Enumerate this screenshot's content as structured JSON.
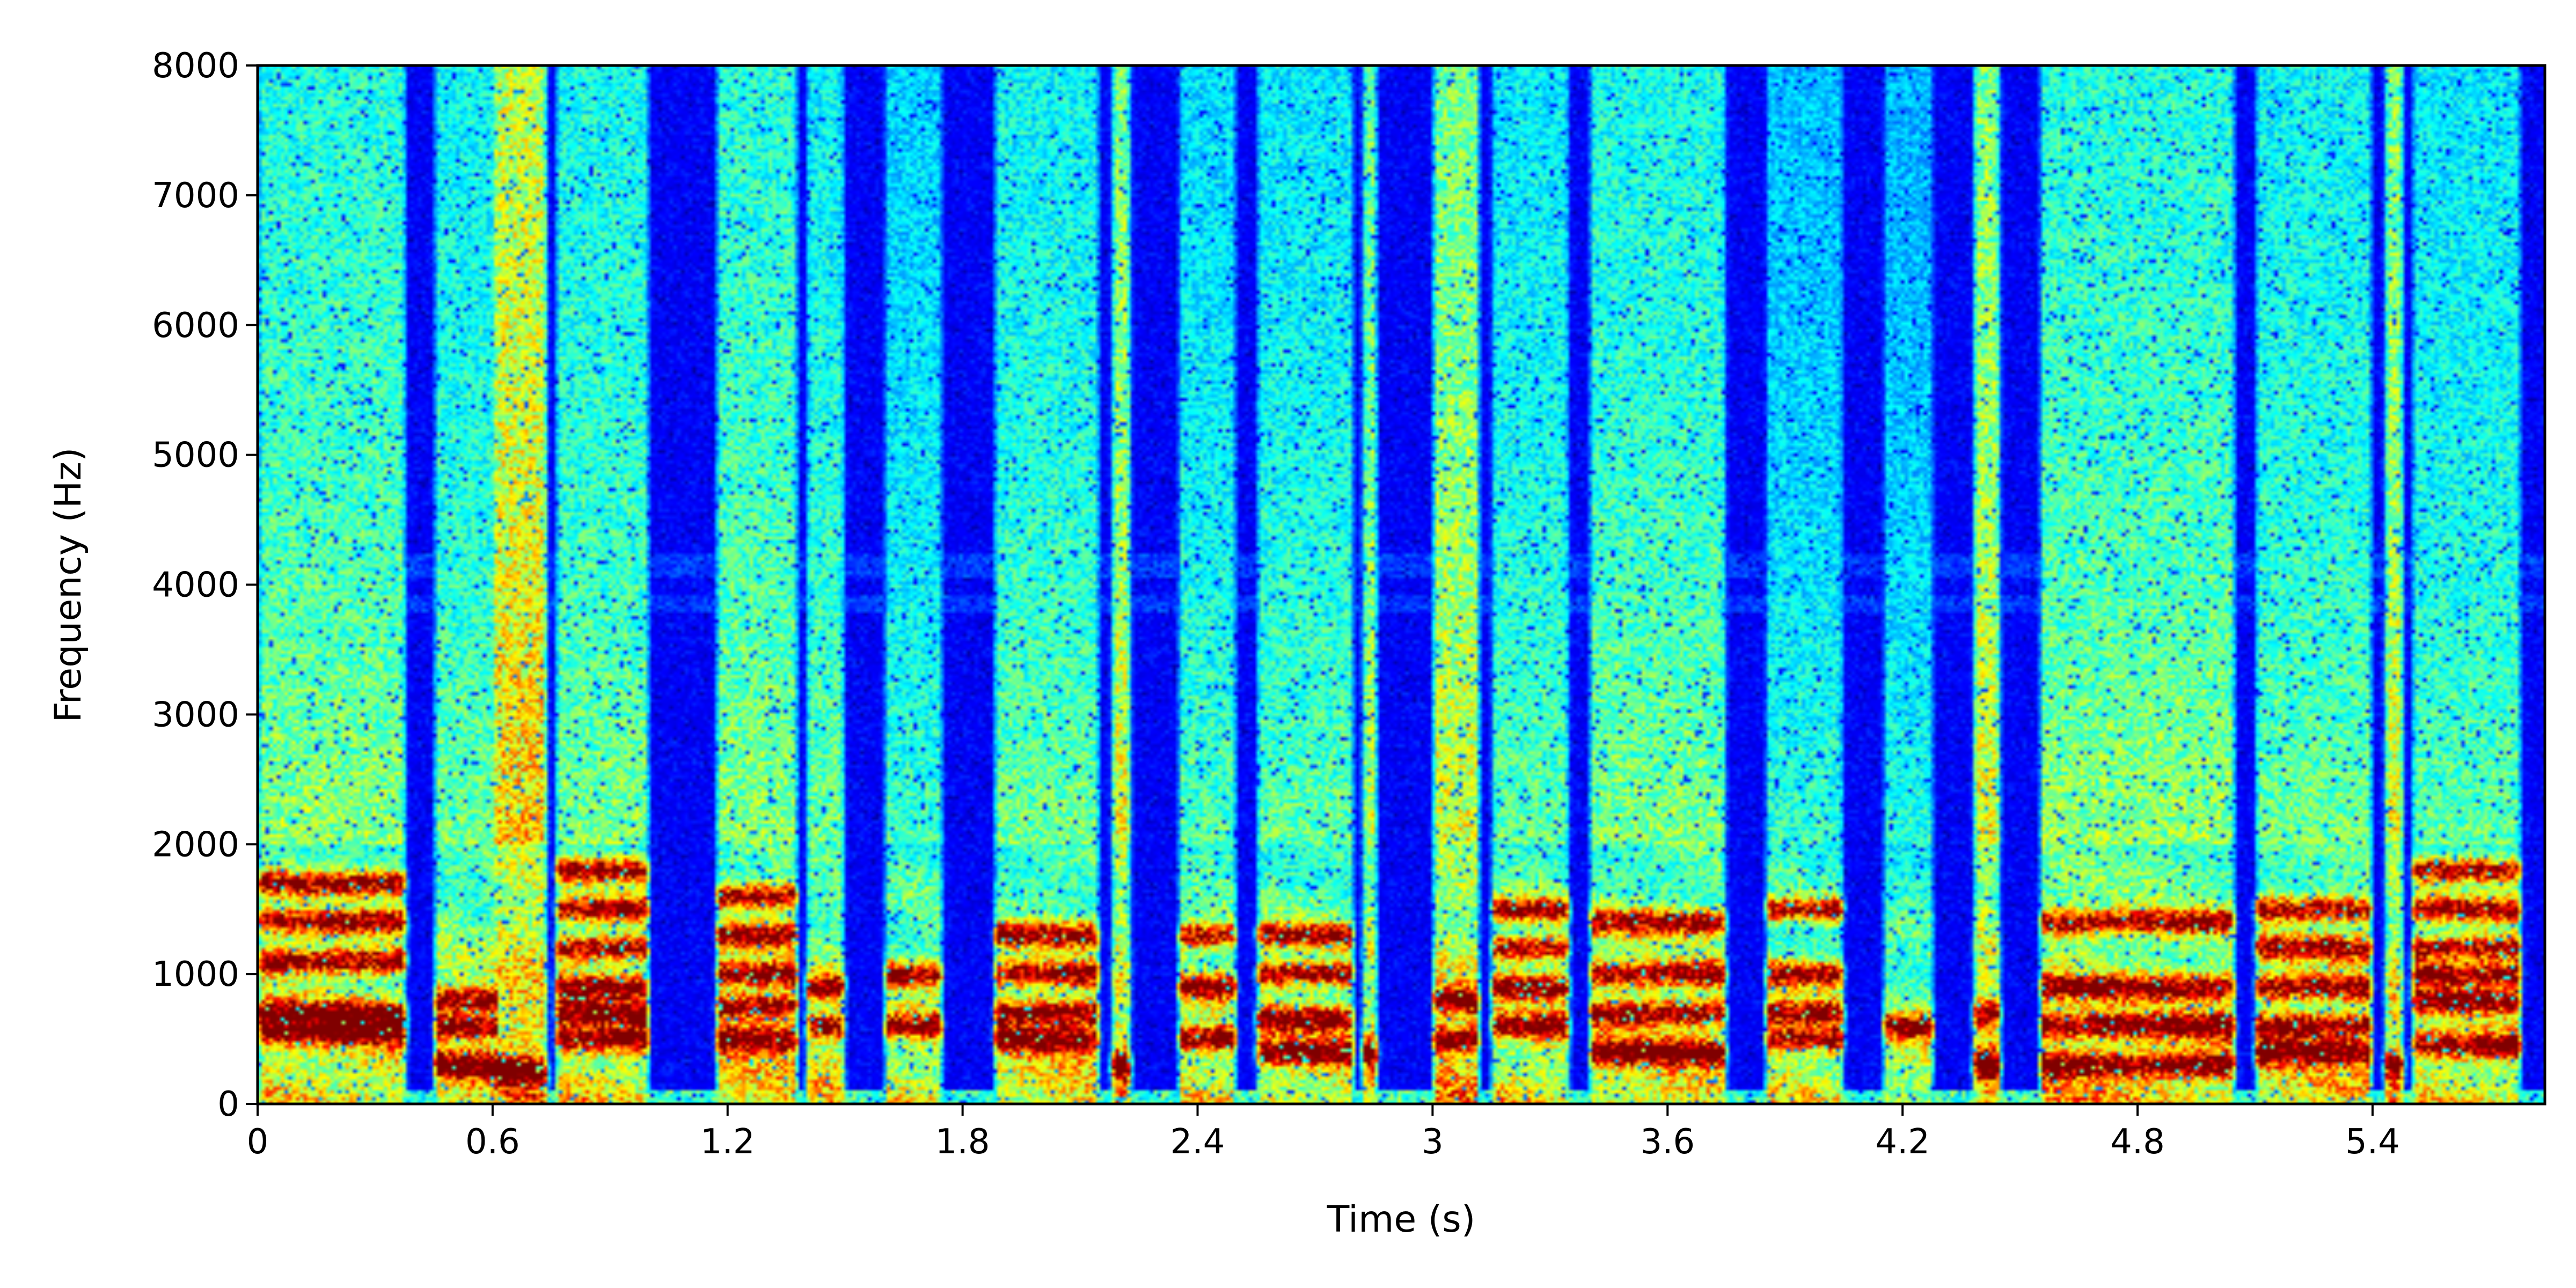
{
  "chart_data": {
    "type": "heatmap",
    "subtype": "spectrogram",
    "title": "",
    "xlabel": "Time (s)",
    "ylabel": "Frequency (Hz)",
    "xlim": [
      0,
      5.84
    ],
    "ylim": [
      0,
      8000
    ],
    "x_ticks": [
      0,
      0.6,
      1.2,
      1.8,
      2.4,
      3,
      3.6,
      4.2,
      4.8,
      5.4
    ],
    "x_tick_labels": [
      "0",
      "0.6",
      "1.2",
      "1.8",
      "2.4",
      "3",
      "3.6",
      "4.2",
      "4.8",
      "5.4"
    ],
    "y_ticks": [
      0,
      1000,
      2000,
      3000,
      4000,
      5000,
      6000,
      7000,
      8000
    ],
    "y_tick_labels": [
      "0",
      "1000",
      "2000",
      "3000",
      "4000",
      "5000",
      "6000",
      "7000",
      "8000"
    ],
    "colormap": "jet",
    "background_color": "#00008b",
    "grid": false,
    "legend": "none",
    "segments": [
      {
        "start": 0.0,
        "end": 0.38,
        "high": 0.7,
        "formants": [
          550,
          700,
          1100,
          1400,
          1700
        ]
      },
      {
        "start": 0.45,
        "end": 0.62,
        "high": 0.6,
        "formants": [
          300,
          600,
          800
        ]
      },
      {
        "start": 0.6,
        "end": 0.74,
        "high": 1.0,
        "fricative": true,
        "formants": [
          250
        ]
      },
      {
        "start": 0.76,
        "end": 1.0,
        "high": 0.65,
        "formants": [
          500,
          700,
          900,
          1200,
          1500,
          1800
        ]
      },
      {
        "start": 1.17,
        "end": 1.38,
        "high": 0.7,
        "formants": [
          500,
          750,
          1000,
          1300,
          1600
        ]
      },
      {
        "start": 1.4,
        "end": 1.5,
        "high": 0.6,
        "formants": [
          600,
          900
        ]
      },
      {
        "start": 1.6,
        "end": 1.75,
        "high": 0.45,
        "formants": [
          600,
          1000
        ]
      },
      {
        "start": 1.88,
        "end": 2.15,
        "high": 0.6,
        "formants": [
          500,
          700,
          1000,
          1300
        ]
      },
      {
        "start": 2.18,
        "end": 2.23,
        "high": 1.0,
        "formants": [
          300
        ]
      },
      {
        "start": 2.35,
        "end": 2.5,
        "high": 0.5,
        "formants": [
          500,
          900,
          1300
        ]
      },
      {
        "start": 2.55,
        "end": 2.8,
        "high": 0.55,
        "formants": [
          400,
          650,
          1000,
          1300
        ]
      },
      {
        "start": 2.82,
        "end": 2.86,
        "high": 0.9,
        "formants": [
          400
        ]
      },
      {
        "start": 3.0,
        "end": 3.12,
        "high": 0.95,
        "formants": [
          500,
          800
        ]
      },
      {
        "start": 3.15,
        "end": 3.35,
        "high": 0.55,
        "formants": [
          600,
          900,
          1200,
          1500
        ]
      },
      {
        "start": 3.4,
        "end": 3.75,
        "high": 0.65,
        "formants": [
          400,
          700,
          1000,
          1400
        ]
      },
      {
        "start": 3.85,
        "end": 4.05,
        "high": 0.4,
        "formants": [
          500,
          700,
          1000,
          1500
        ]
      },
      {
        "start": 4.15,
        "end": 4.28,
        "high": 0.35,
        "formants": [
          600
        ]
      },
      {
        "start": 4.38,
        "end": 4.45,
        "high": 1.0,
        "formants": [
          300,
          700
        ]
      },
      {
        "start": 4.55,
        "end": 5.05,
        "high": 0.7,
        "formants": [
          300,
          600,
          900,
          1400
        ]
      },
      {
        "start": 5.1,
        "end": 5.4,
        "high": 0.6,
        "formants": [
          400,
          600,
          900,
          1200,
          1500
        ]
      },
      {
        "start": 5.43,
        "end": 5.48,
        "high": 1.0,
        "formants": [
          300
        ]
      },
      {
        "start": 5.5,
        "end": 5.78,
        "high": 0.55,
        "formants": [
          450,
          800,
          1000,
          1200,
          1500,
          1800
        ]
      }
    ]
  }
}
